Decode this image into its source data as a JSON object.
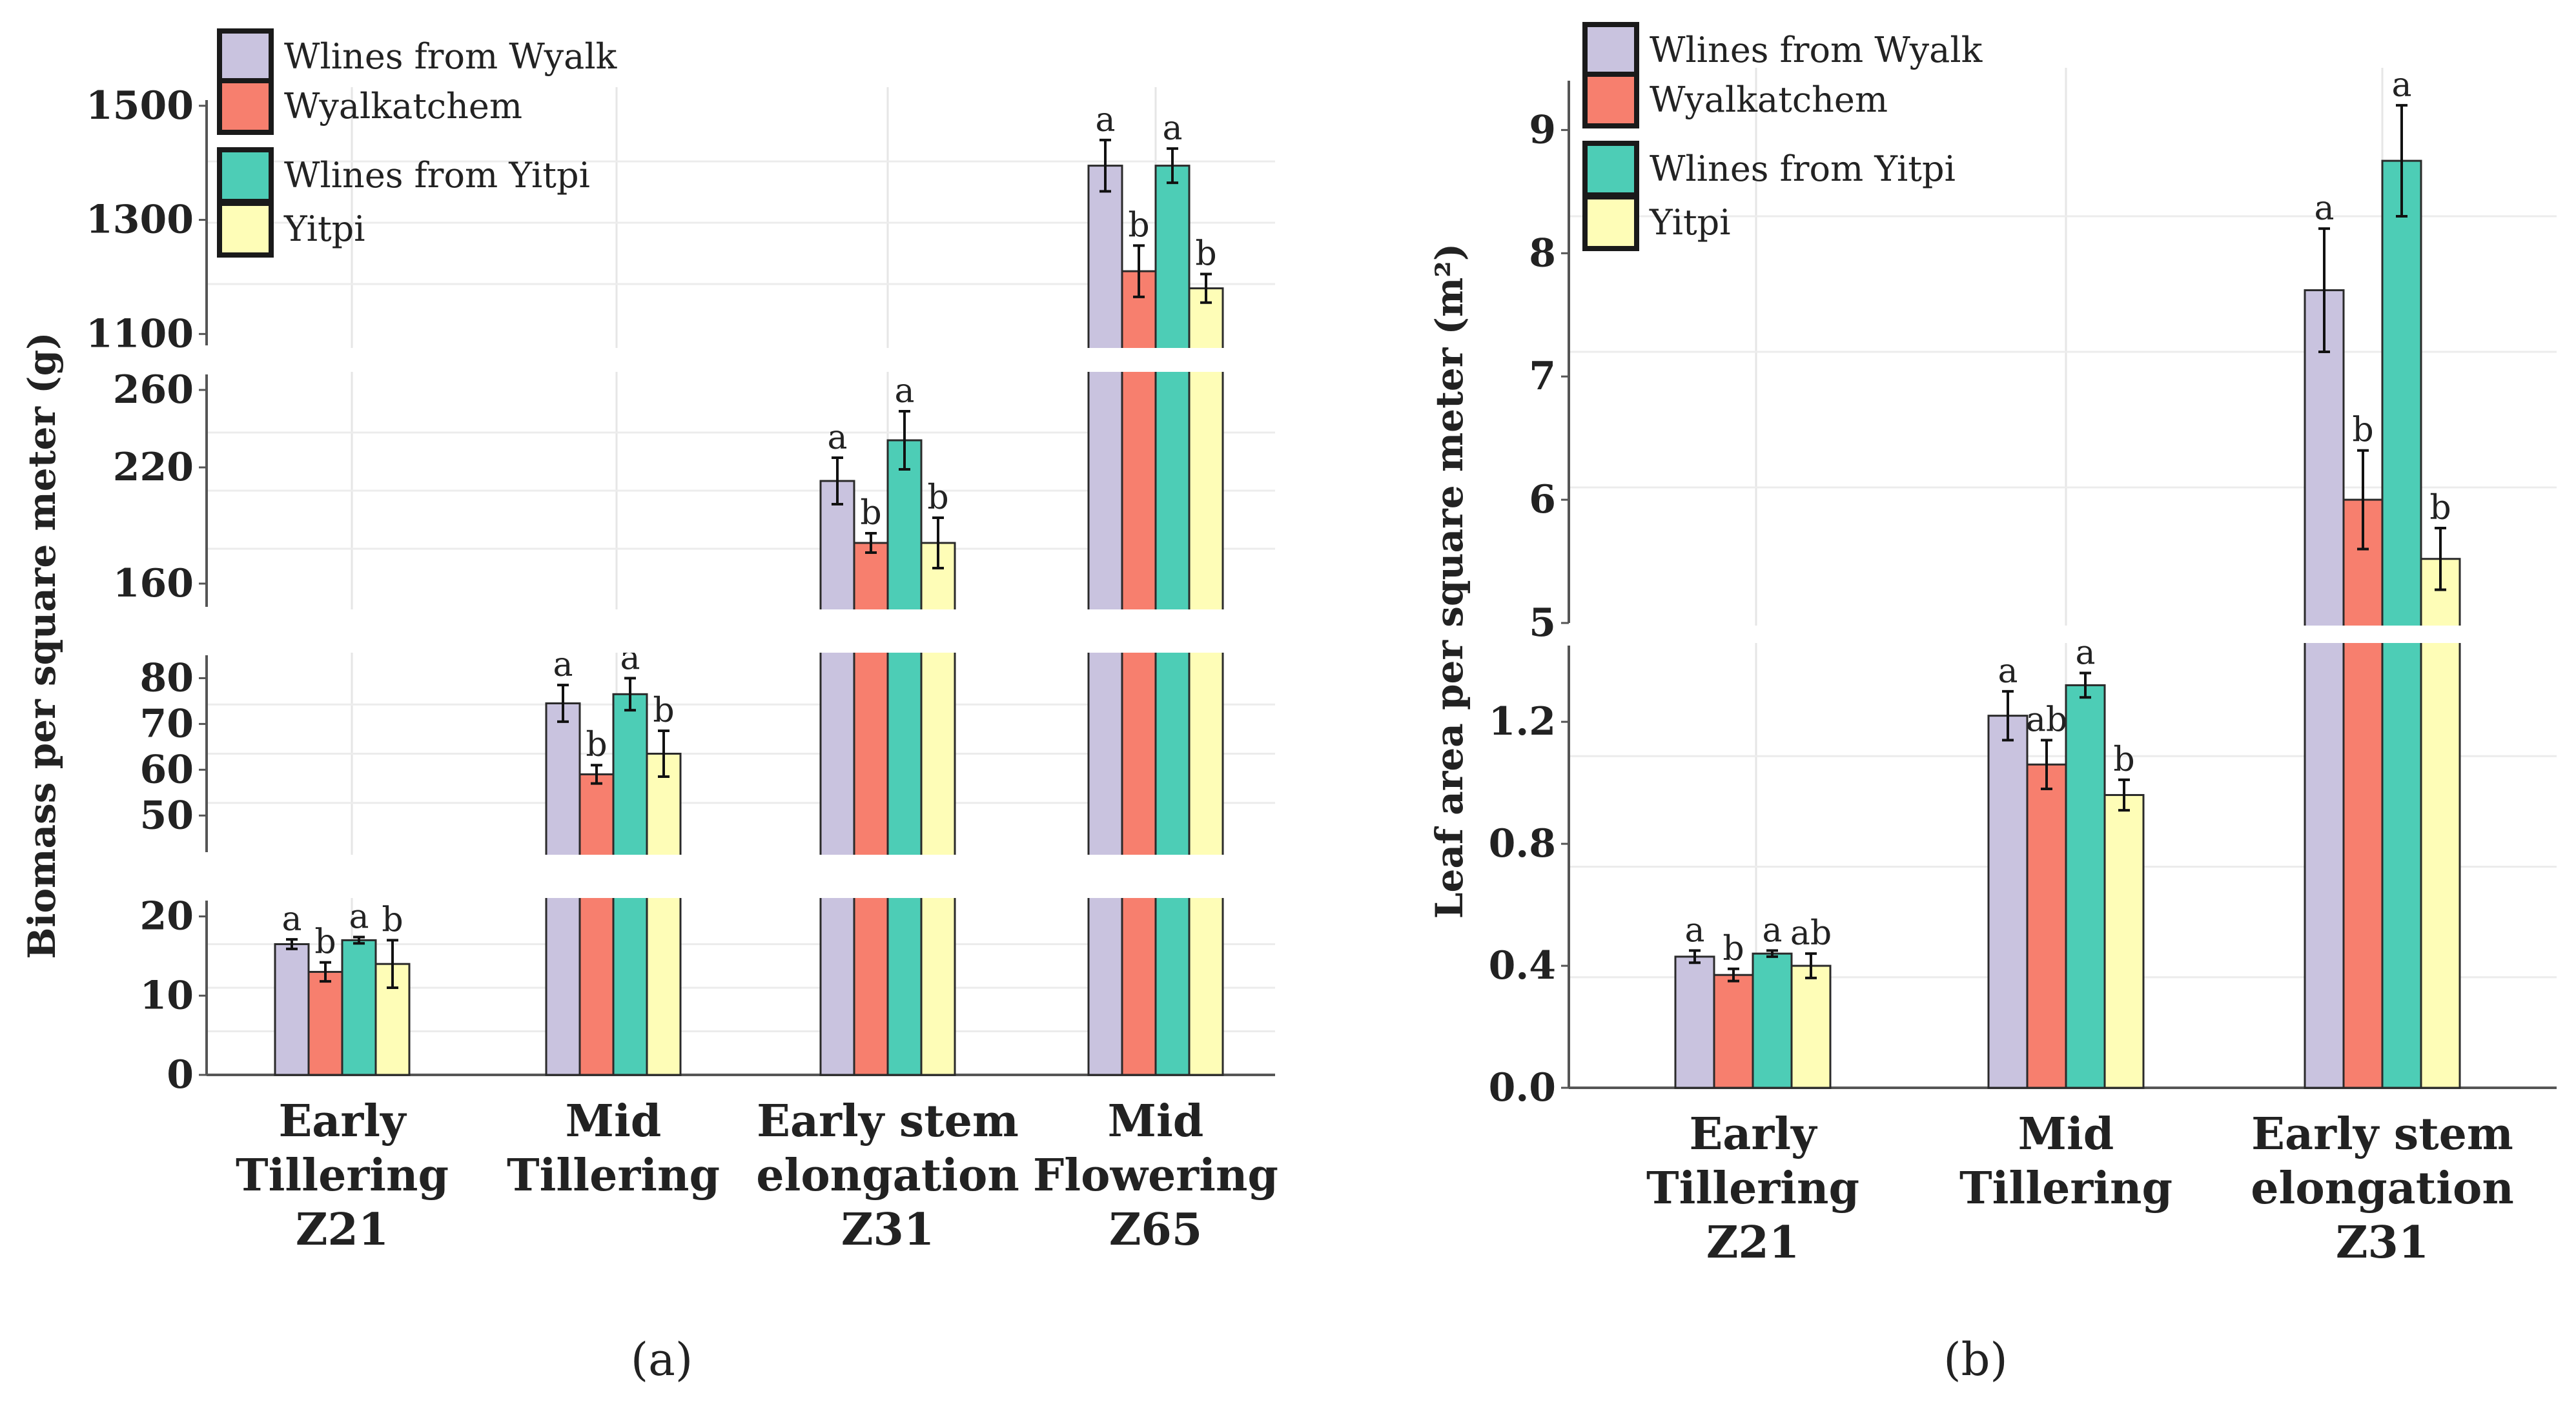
{
  "colors": {
    "wlines_wyalk": "#C9C3DF",
    "wyalkatchem": "#F77F6E",
    "wlines_yitpi": "#4DCDB6",
    "yitpi": "#FEFDB7"
  },
  "legend": [
    {
      "label": "Wlines from Wyalk",
      "color_key": "wlines_wyalk"
    },
    {
      "label": "Wyalkatchem",
      "color_key": "wyalkatchem"
    },
    {
      "label": "Wlines from Yitpi",
      "color_key": "wlines_yitpi"
    },
    {
      "label": "Yitpi",
      "color_key": "yitpi"
    }
  ],
  "panel_labels": {
    "a": "(a)",
    "b": "(b)"
  },
  "chart_data": [
    {
      "type": "bar",
      "title": "",
      "xlabel": "",
      "ylabel": "Biomass per square meter (g)",
      "categories": [
        [
          "Early",
          "Tillering",
          "Z21"
        ],
        [
          "Mid",
          "Tillering"
        ],
        [
          "Early stem",
          "elongation",
          "Z31"
        ],
        [
          "Mid",
          "Flowering",
          "Z65"
        ]
      ],
      "y_axis_segments": [
        {
          "range": [
            0,
            22
          ],
          "ticks": [
            "0",
            "10",
            "20"
          ]
        },
        {
          "range": [
            42,
            85
          ],
          "ticks": [
            "50",
            "60",
            "70",
            "80"
          ]
        },
        {
          "range": [
            148,
            268
          ],
          "ticks": [
            "160",
            "220",
            "260"
          ]
        },
        {
          "range": [
            1080,
            1510
          ],
          "ticks": [
            "1100",
            "1300",
            "1500"
          ]
        }
      ],
      "series": [
        {
          "name": "Wlines from Wyalk",
          "values": [
            16.5,
            74.5,
            213,
            1395
          ],
          "errors": [
            0.6,
            4,
            12,
            45
          ],
          "letters": [
            "a",
            "a",
            "a",
            "a"
          ]
        },
        {
          "name": "Wyalkatchem",
          "values": [
            13,
            59,
            181,
            1210
          ],
          "errors": [
            1.2,
            2,
            5,
            45
          ],
          "letters": [
            "b",
            "b",
            "b",
            "b"
          ]
        },
        {
          "name": "Wlines from Yitpi",
          "values": [
            17,
            76.5,
            234,
            1395
          ],
          "errors": [
            0.4,
            3.5,
            15,
            30
          ],
          "letters": [
            "a",
            "a",
            "a",
            "a"
          ]
        },
        {
          "name": "Yitpi",
          "values": [
            14,
            63.5,
            181,
            1180
          ],
          "errors": [
            3,
            5,
            13,
            25
          ],
          "letters": [
            "b",
            "b",
            "b",
            "b"
          ]
        }
      ]
    },
    {
      "type": "bar",
      "title": "",
      "xlabel": "",
      "ylabel": "Leaf area per square meter (m²)",
      "categories": [
        [
          "Early",
          "Tillering",
          "Z21"
        ],
        [
          "Mid",
          "Tillering"
        ],
        [
          "Early stem",
          "elongation",
          "Z31"
        ]
      ],
      "y_axis_segments": [
        {
          "range": [
            0,
            1.45
          ],
          "ticks": [
            "0.0",
            "0.4",
            "0.8",
            "1.2"
          ]
        },
        {
          "range": [
            5,
            9.4
          ],
          "ticks": [
            "5",
            "6",
            "7",
            "8",
            "9"
          ]
        }
      ],
      "series": [
        {
          "name": "Wlines from Wyalk",
          "values": [
            0.43,
            1.22,
            7.7
          ],
          "errors": [
            0.02,
            0.08,
            0.5
          ],
          "letters": [
            "a",
            "a",
            "a"
          ]
        },
        {
          "name": "Wyalkatchem",
          "values": [
            0.37,
            1.06,
            6.0
          ],
          "errors": [
            0.02,
            0.08,
            0.4
          ],
          "letters": [
            "b",
            "ab",
            "b"
          ]
        },
        {
          "name": "Wlines from Yitpi",
          "values": [
            0.44,
            1.32,
            8.75
          ],
          "errors": [
            0.01,
            0.04,
            0.45
          ],
          "letters": [
            "a",
            "a",
            "a"
          ]
        },
        {
          "name": "Yitpi",
          "values": [
            0.4,
            0.96,
            5.52
          ],
          "errors": [
            0.04,
            0.05,
            0.25
          ],
          "letters": [
            "ab",
            "b",
            "b"
          ]
        }
      ]
    }
  ]
}
